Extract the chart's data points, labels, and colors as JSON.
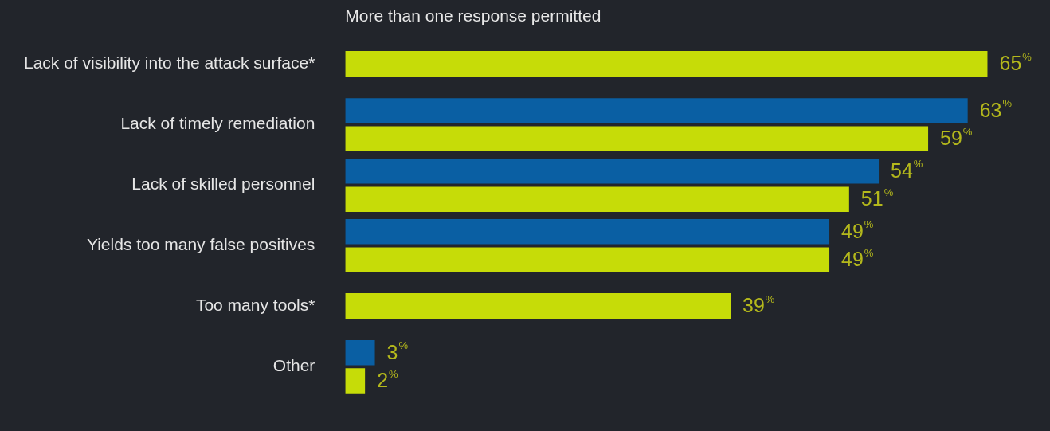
{
  "chart_data": {
    "type": "bar",
    "orientation": "horizontal",
    "subtitle": "More than one response permitted",
    "categories": [
      "Lack of visibility into the attack surface*",
      "Lack of timely remediation",
      "Lack of skilled personnel",
      "Yields too many false positives",
      "Too many tools*",
      "Other"
    ],
    "series": [
      {
        "color": "#0a5fa3",
        "values": [
          null,
          63,
          54,
          49,
          null,
          3
        ],
        "value_labels": [
          null,
          "63$^{%}$",
          "54$^{%}$",
          "49$^{%}$",
          null,
          "3$^{%}$"
        ]
      },
      {
        "color": "#c6dc08",
        "values": [
          65,
          59,
          51,
          49,
          39,
          2
        ],
        "value_labels": [
          "65$^{%}$",
          "59$^{%}$",
          "51$^{%}$",
          "49$^{%}$",
          "39$^{%}$",
          "2$^{%}$"
        ]
      }
    ],
    "legend": false
  }
}
